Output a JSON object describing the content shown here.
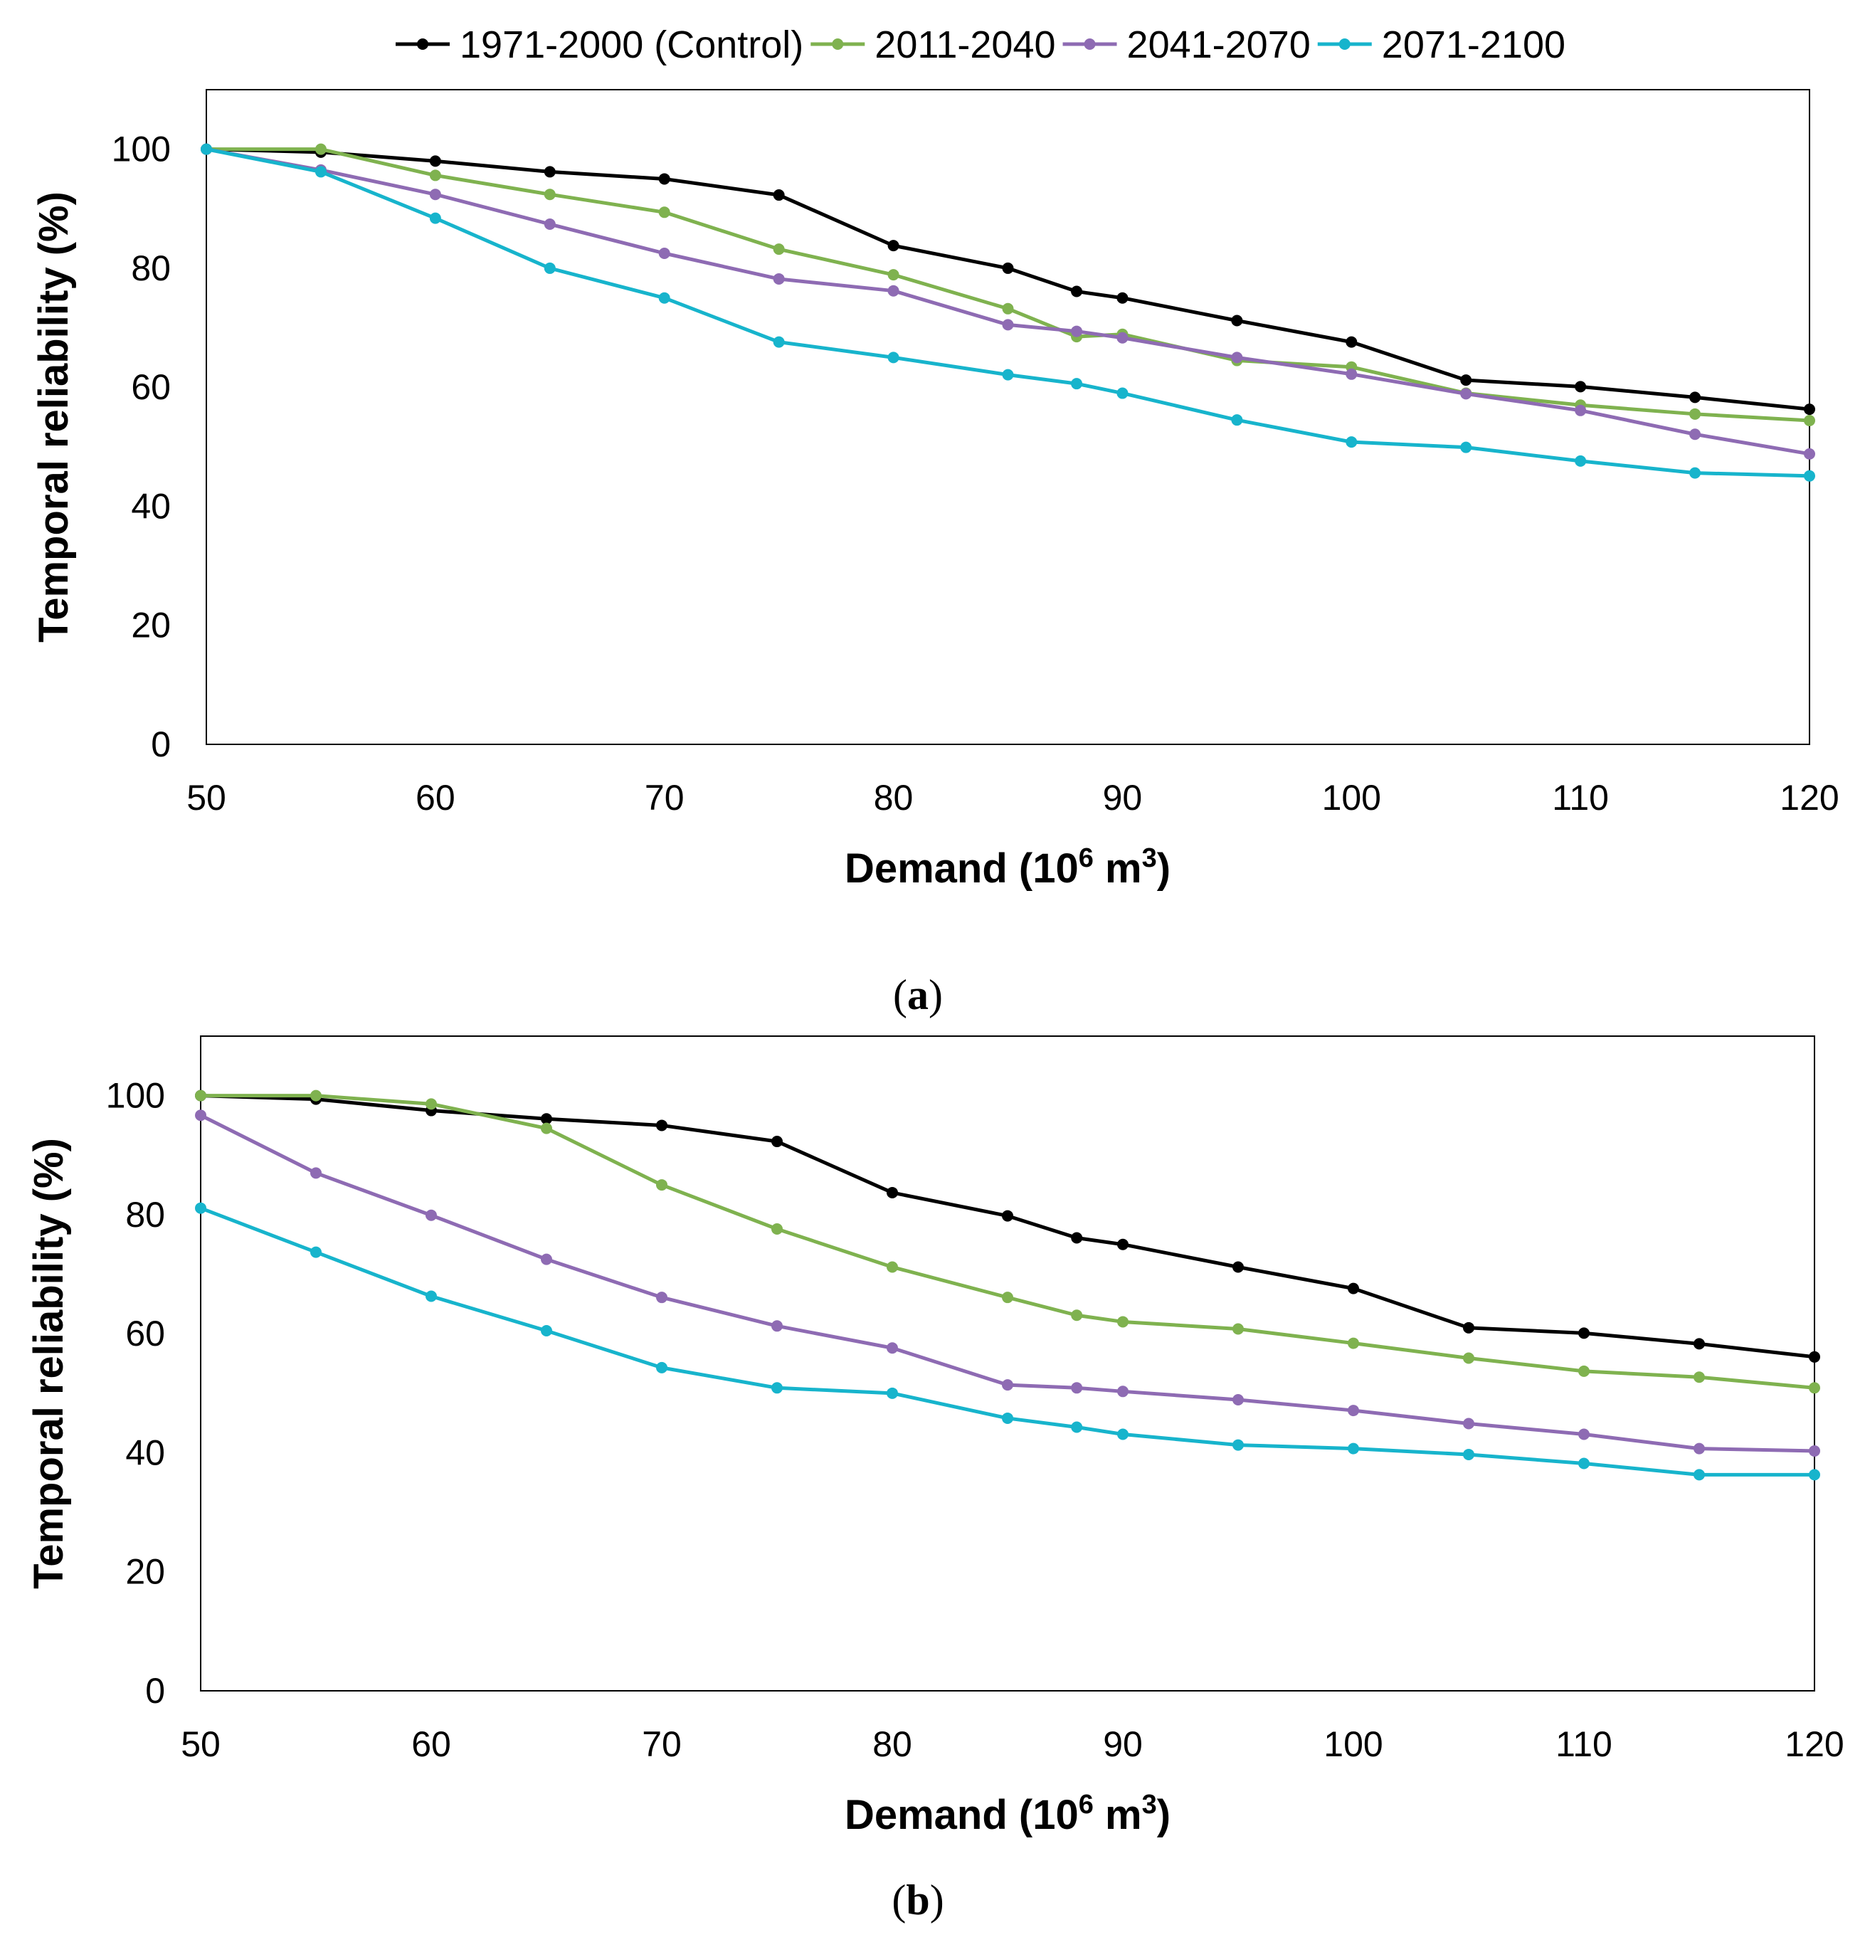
{
  "legend": [
    "1971-2000 (Control)",
    "2011-2040",
    "2041-2070",
    "2071-2100"
  ],
  "chart_data": [
    {
      "type": "line",
      "panel_label": "a",
      "xlabel": "Demand (10",
      "xlabel_sup1": "6",
      "xlabel_mid": " m",
      "xlabel_sup2": "3",
      "xlabel_end": ")",
      "ylabel": "Temporal reliability (%)",
      "xlim": [
        50,
        120
      ],
      "ylim": [
        0,
        110
      ],
      "xticks": [
        50,
        60,
        70,
        80,
        90,
        100,
        110,
        120
      ],
      "yticks": [
        0,
        20,
        40,
        60,
        80,
        100
      ],
      "x": [
        50,
        55,
        60,
        65,
        70,
        75,
        80,
        85,
        88,
        90,
        95,
        100,
        105,
        110,
        115,
        120
      ],
      "series": [
        {
          "name": "1971-2000 (Control)",
          "color": "#000000",
          "values": [
            100,
            99.5,
            98,
            96.2,
            95,
            92.3,
            83.8,
            80,
            76.1,
            75,
            71.2,
            67.6,
            61.2,
            60.1,
            58.3,
            56.3
          ]
        },
        {
          "name": "2011-2040",
          "color": "#7fb24f",
          "values": [
            100,
            100,
            95.6,
            92.4,
            89.4,
            83.2,
            78.9,
            73.2,
            68.5,
            68.9,
            64.5,
            63.4,
            59,
            57,
            55.5,
            54.4
          ]
        },
        {
          "name": "2041-2070",
          "color": "#8e6bb3",
          "values": [
            100,
            96.5,
            92.4,
            87.4,
            82.5,
            78.2,
            76.2,
            70.5,
            69.4,
            68.3,
            65,
            62.2,
            58.9,
            56.1,
            52.1,
            48.8
          ]
        },
        {
          "name": "2071-2100",
          "color": "#17b4cc",
          "values": [
            100,
            96.2,
            88.4,
            80,
            75,
            67.6,
            65,
            62.1,
            60.6,
            59,
            54.5,
            50.8,
            49.9,
            47.6,
            45.6,
            45.1
          ]
        }
      ]
    },
    {
      "type": "line",
      "panel_label": "b",
      "xlabel": "Demand (10",
      "xlabel_sup1": "6",
      "xlabel_mid": " m",
      "xlabel_sup2": "3",
      "xlabel_end": ")",
      "ylabel": "Temporal reliability (%)",
      "xlim": [
        50,
        120
      ],
      "ylim": [
        0,
        110
      ],
      "xticks": [
        50,
        60,
        70,
        80,
        90,
        100,
        110,
        120
      ],
      "yticks": [
        0,
        20,
        40,
        60,
        80,
        100
      ],
      "x": [
        50,
        55,
        60,
        65,
        70,
        75,
        80,
        85,
        88,
        90,
        95,
        100,
        105,
        110,
        115,
        120
      ],
      "series": [
        {
          "name": "1971-2000 (Control)",
          "color": "#000000",
          "values": [
            100,
            99.4,
            97.5,
            96.1,
            95,
            92.3,
            83.7,
            79.8,
            76.1,
            75,
            71.2,
            67.6,
            61,
            60.1,
            58.3,
            56.1
          ]
        },
        {
          "name": "2011-2040",
          "color": "#7fb24f",
          "values": [
            100,
            100,
            98.6,
            94.5,
            85,
            77.6,
            71.2,
            66.1,
            63.1,
            62,
            60.8,
            58.4,
            55.9,
            53.7,
            52.7,
            50.9
          ]
        },
        {
          "name": "2041-2070",
          "color": "#8e6bb3",
          "values": [
            96.7,
            87,
            79.9,
            72.5,
            66.1,
            61.3,
            57.6,
            51.4,
            50.9,
            50.3,
            48.9,
            47.1,
            44.9,
            43.1,
            40.7,
            40.3
          ]
        },
        {
          "name": "2071-2100",
          "color": "#17b4cc",
          "values": [
            81.1,
            73.7,
            66.3,
            60.5,
            54.3,
            50.9,
            50,
            45.8,
            44.3,
            43.1,
            41.3,
            40.7,
            39.7,
            38.2,
            36.3,
            36.3
          ]
        }
      ]
    }
  ]
}
